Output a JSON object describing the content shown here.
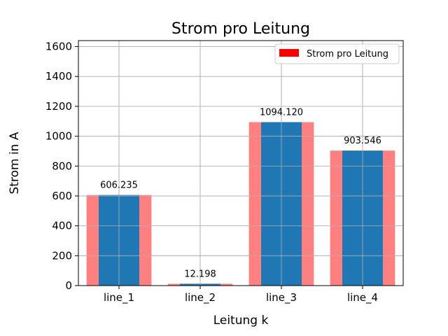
{
  "chart_data": {
    "type": "bar",
    "title": "Strom pro Leitung",
    "xlabel": "Leitung k",
    "ylabel": "Strom in A",
    "categories": [
      "line_1",
      "line_2",
      "line_3",
      "line_4"
    ],
    "series": [
      {
        "name": "Strom pro Leitung",
        "values": [
          606.235,
          12.198,
          1094.12,
          903.546
        ],
        "color": "#ff8080"
      },
      {
        "values": [
          606.235,
          12.198,
          1094.12,
          903.546
        ],
        "color": "#1f77b4"
      }
    ],
    "data_labels": [
      "606.235",
      "12.198",
      "1094.120",
      "903.546"
    ],
    "ylim": [
      0,
      1640
    ],
    "yticks": [
      0,
      200,
      400,
      600,
      800,
      1000,
      1200,
      1400,
      1600
    ],
    "grid": true,
    "legend": {
      "placement": "top-right",
      "entries": [
        "Strom pro Leitung"
      ]
    }
  }
}
